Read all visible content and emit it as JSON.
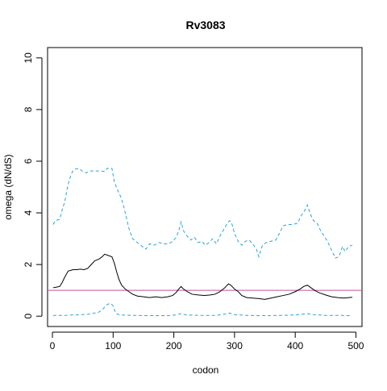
{
  "chart_data": {
    "type": "line",
    "title": "Rv3083",
    "xlabel": "codon",
    "ylabel": "omega (dN/dS)",
    "xlim": [
      -8,
      510
    ],
    "ylim": [
      -0.4,
      10.4
    ],
    "x_ticks": [
      {
        "value": 0,
        "label": "0"
      },
      {
        "value": 100,
        "label": "100"
      },
      {
        "value": 200,
        "label": "200"
      },
      {
        "value": 300,
        "label": "300"
      },
      {
        "value": 400,
        "label": "400"
      },
      {
        "value": 500,
        "label": "500"
      }
    ],
    "y_ticks": [
      {
        "value": 0,
        "label": "0"
      },
      {
        "value": 2,
        "label": "2"
      },
      {
        "value": 4,
        "label": "4"
      },
      {
        "value": 6,
        "label": "6"
      },
      {
        "value": 8,
        "label": "8"
      },
      {
        "value": 10,
        "label": "10"
      }
    ],
    "reference_line": {
      "y": 1,
      "color": "#c44fa3"
    },
    "series": [
      {
        "style": "dashed",
        "color": "#29a3e0",
        "points": [
          [
            1,
            3.55
          ],
          [
            5,
            3.7
          ],
          [
            12,
            3.75
          ],
          [
            17,
            4.2
          ],
          [
            20,
            4.4
          ],
          [
            24,
            4.9
          ],
          [
            28,
            5.3
          ],
          [
            33,
            5.6
          ],
          [
            38,
            5.7
          ],
          [
            44,
            5.72
          ],
          [
            50,
            5.6
          ],
          [
            56,
            5.55
          ],
          [
            62,
            5.62
          ],
          [
            68,
            5.62
          ],
          [
            75,
            5.62
          ],
          [
            80,
            5.62
          ],
          [
            86,
            5.6
          ],
          [
            90,
            5.72
          ],
          [
            98,
            5.72
          ],
          [
            102,
            5.2
          ],
          [
            107,
            4.9
          ],
          [
            113,
            4.6
          ],
          [
            118,
            4.2
          ],
          [
            122,
            3.8
          ],
          [
            126,
            3.4
          ],
          [
            132,
            3.0
          ],
          [
            140,
            2.85
          ],
          [
            148,
            2.7
          ],
          [
            154,
            2.6
          ],
          [
            160,
            2.8
          ],
          [
            168,
            2.75
          ],
          [
            176,
            2.85
          ],
          [
            184,
            2.8
          ],
          [
            192,
            2.8
          ],
          [
            198,
            2.9
          ],
          [
            204,
            3.05
          ],
          [
            208,
            3.3
          ],
          [
            212,
            3.65
          ],
          [
            216,
            3.3
          ],
          [
            222,
            3.1
          ],
          [
            228,
            2.95
          ],
          [
            234,
            3.05
          ],
          [
            240,
            2.85
          ],
          [
            246,
            2.9
          ],
          [
            252,
            2.75
          ],
          [
            258,
            2.85
          ],
          [
            264,
            3.0
          ],
          [
            270,
            2.8
          ],
          [
            276,
            3.1
          ],
          [
            282,
            3.35
          ],
          [
            288,
            3.6
          ],
          [
            292,
            3.7
          ],
          [
            296,
            3.55
          ],
          [
            300,
            3.2
          ],
          [
            306,
            2.9
          ],
          [
            312,
            2.75
          ],
          [
            318,
            2.9
          ],
          [
            324,
            2.95
          ],
          [
            330,
            2.8
          ],
          [
            336,
            2.6
          ],
          [
            340,
            2.3
          ],
          [
            346,
            2.75
          ],
          [
            352,
            2.85
          ],
          [
            360,
            2.9
          ],
          [
            368,
            2.95
          ],
          [
            374,
            3.2
          ],
          [
            380,
            3.5
          ],
          [
            388,
            3.55
          ],
          [
            396,
            3.55
          ],
          [
            404,
            3.6
          ],
          [
            410,
            3.9
          ],
          [
            416,
            4.1
          ],
          [
            420,
            4.3
          ],
          [
            424,
            4.0
          ],
          [
            430,
            3.7
          ],
          [
            436,
            3.6
          ],
          [
            442,
            3.3
          ],
          [
            448,
            3.1
          ],
          [
            454,
            2.85
          ],
          [
            460,
            2.55
          ],
          [
            466,
            2.25
          ],
          [
            472,
            2.3
          ],
          [
            478,
            2.7
          ],
          [
            482,
            2.5
          ],
          [
            488,
            2.7
          ],
          [
            494,
            2.75
          ]
        ]
      },
      {
        "style": "solid",
        "color": "#000000",
        "points": [
          [
            1,
            1.1
          ],
          [
            6,
            1.12
          ],
          [
            12,
            1.15
          ],
          [
            16,
            1.3
          ],
          [
            20,
            1.5
          ],
          [
            26,
            1.75
          ],
          [
            34,
            1.8
          ],
          [
            40,
            1.8
          ],
          [
            46,
            1.82
          ],
          [
            52,
            1.8
          ],
          [
            58,
            1.85
          ],
          [
            64,
            2.0
          ],
          [
            70,
            2.15
          ],
          [
            76,
            2.2
          ],
          [
            82,
            2.3
          ],
          [
            86,
            2.4
          ],
          [
            92,
            2.35
          ],
          [
            98,
            2.3
          ],
          [
            102,
            2.05
          ],
          [
            106,
            1.7
          ],
          [
            110,
            1.4
          ],
          [
            114,
            1.2
          ],
          [
            120,
            1.05
          ],
          [
            126,
            0.95
          ],
          [
            132,
            0.85
          ],
          [
            140,
            0.78
          ],
          [
            150,
            0.75
          ],
          [
            160,
            0.72
          ],
          [
            170,
            0.75
          ],
          [
            180,
            0.72
          ],
          [
            190,
            0.75
          ],
          [
            198,
            0.8
          ],
          [
            204,
            0.92
          ],
          [
            208,
            1.05
          ],
          [
            212,
            1.15
          ],
          [
            216,
            1.05
          ],
          [
            222,
            0.95
          ],
          [
            230,
            0.85
          ],
          [
            240,
            0.82
          ],
          [
            250,
            0.8
          ],
          [
            260,
            0.82
          ],
          [
            268,
            0.85
          ],
          [
            276,
            0.95
          ],
          [
            284,
            1.1
          ],
          [
            290,
            1.25
          ],
          [
            294,
            1.2
          ],
          [
            300,
            1.05
          ],
          [
            306,
            0.95
          ],
          [
            312,
            0.8
          ],
          [
            320,
            0.72
          ],
          [
            330,
            0.7
          ],
          [
            340,
            0.68
          ],
          [
            350,
            0.65
          ],
          [
            360,
            0.7
          ],
          [
            370,
            0.75
          ],
          [
            380,
            0.8
          ],
          [
            390,
            0.85
          ],
          [
            400,
            0.95
          ],
          [
            408,
            1.05
          ],
          [
            414,
            1.15
          ],
          [
            420,
            1.2
          ],
          [
            426,
            1.1
          ],
          [
            432,
            1.0
          ],
          [
            440,
            0.9
          ],
          [
            450,
            0.82
          ],
          [
            460,
            0.75
          ],
          [
            470,
            0.72
          ],
          [
            480,
            0.7
          ],
          [
            488,
            0.72
          ],
          [
            494,
            0.73
          ]
        ]
      },
      {
        "style": "dashed",
        "color": "#29a3e0",
        "points": [
          [
            1,
            0.03
          ],
          [
            20,
            0.03
          ],
          [
            40,
            0.05
          ],
          [
            60,
            0.08
          ],
          [
            76,
            0.15
          ],
          [
            84,
            0.3
          ],
          [
            90,
            0.45
          ],
          [
            96,
            0.5
          ],
          [
            100,
            0.4
          ],
          [
            104,
            0.12
          ],
          [
            110,
            0.05
          ],
          [
            130,
            0.03
          ],
          [
            160,
            0.02
          ],
          [
            190,
            0.02
          ],
          [
            204,
            0.05
          ],
          [
            212,
            0.1
          ],
          [
            220,
            0.05
          ],
          [
            240,
            0.03
          ],
          [
            270,
            0.03
          ],
          [
            284,
            0.08
          ],
          [
            292,
            0.12
          ],
          [
            300,
            0.06
          ],
          [
            320,
            0.03
          ],
          [
            350,
            0.02
          ],
          [
            380,
            0.03
          ],
          [
            400,
            0.05
          ],
          [
            420,
            0.1
          ],
          [
            430,
            0.06
          ],
          [
            450,
            0.03
          ],
          [
            470,
            0.03
          ],
          [
            494,
            0.02
          ]
        ]
      }
    ],
    "grid": false,
    "legend": "none"
  }
}
